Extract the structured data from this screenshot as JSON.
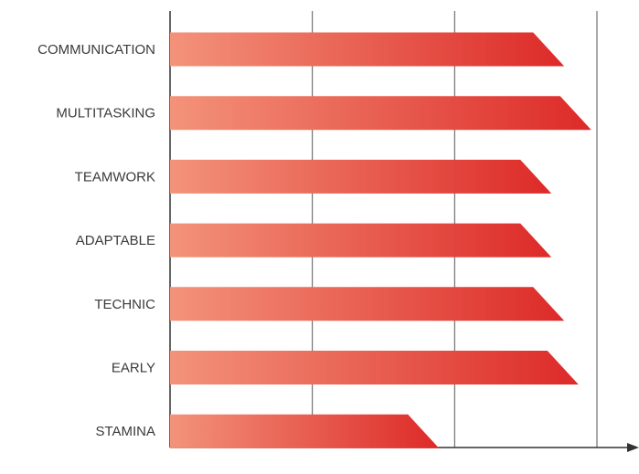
{
  "chart_data": {
    "type": "bar",
    "orientation": "horizontal",
    "categories": [
      "COMMUNICATION",
      "MULTITASKING",
      "TEAMWORK",
      "ADAPTABLE",
      "TECHNIC",
      "EARLY",
      "STAMINA"
    ],
    "values": [
      2.77,
      2.96,
      2.68,
      2.68,
      2.77,
      2.87,
      1.89
    ],
    "xlim": [
      0,
      3.3
    ],
    "x_gridlines": [
      1,
      2,
      3
    ],
    "grid": true,
    "tick_labels_shown": false,
    "bar_gradient": [
      "#f3937a",
      "#dd2a28"
    ]
  }
}
